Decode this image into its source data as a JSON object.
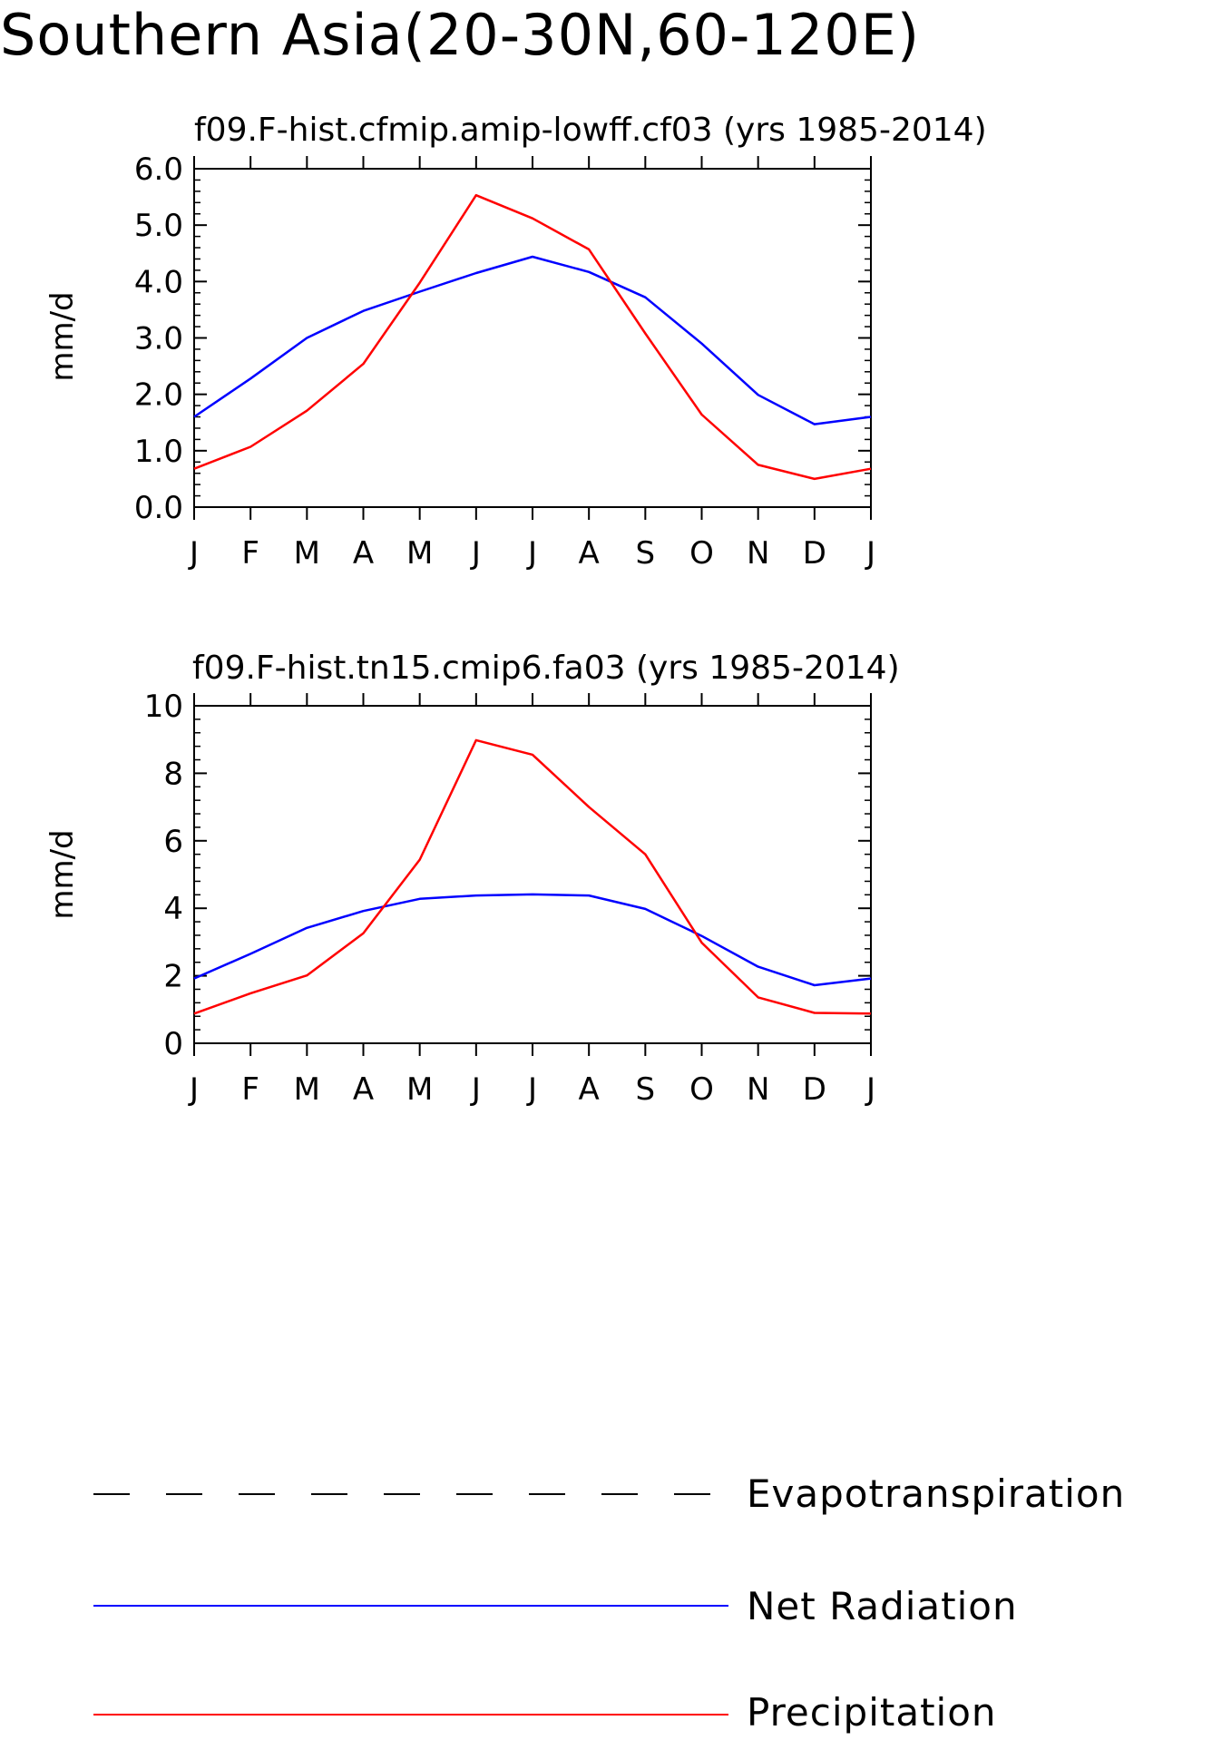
{
  "figure": {
    "title": "Southern Asia(20-30N,60-120E)"
  },
  "chart_data": [
    {
      "type": "line",
      "title": "f09.F-hist.cfmip.amip-lowff.cf03 (yrs 1985-2014)",
      "xlabel": "",
      "ylabel": "mm/d",
      "categories": [
        "J",
        "F",
        "M",
        "A",
        "M",
        "J",
        "J",
        "A",
        "S",
        "O",
        "N",
        "D",
        "J"
      ],
      "ylim": [
        0,
        6
      ],
      "yticks": [
        "0.0",
        "1.0",
        "2.0",
        "3.0",
        "4.0",
        "5.0",
        "6.0"
      ],
      "series": [
        {
          "name": "Net Radiation",
          "color": "#0000ff",
          "values": [
            1.6,
            2.28,
            3.0,
            3.48,
            3.82,
            4.15,
            4.44,
            4.17,
            3.72,
            2.9,
            1.99,
            1.47,
            1.6
          ]
        },
        {
          "name": "Precipitation",
          "color": "#ff0000",
          "values": [
            0.68,
            1.07,
            1.71,
            2.54,
            3.98,
            5.53,
            5.12,
            4.57,
            3.08,
            1.64,
            0.75,
            0.5,
            0.68
          ]
        }
      ]
    },
    {
      "type": "line",
      "title": "f09.F-hist.tn15.cmip6.fa03 (yrs 1985-2014)",
      "xlabel": "",
      "ylabel": "mm/d",
      "categories": [
        "J",
        "F",
        "M",
        "A",
        "M",
        "J",
        "J",
        "A",
        "S",
        "O",
        "N",
        "D",
        "J"
      ],
      "ylim": [
        0,
        10
      ],
      "yticks": [
        "0",
        "2",
        "4",
        "6",
        "8",
        "10"
      ],
      "series": [
        {
          "name": "Net Radiation",
          "color": "#0000ff",
          "values": [
            1.92,
            2.65,
            3.42,
            3.92,
            4.28,
            4.38,
            4.41,
            4.38,
            3.98,
            3.18,
            2.27,
            1.72,
            1.92
          ]
        },
        {
          "name": "Precipitation",
          "color": "#ff0000",
          "values": [
            0.88,
            1.48,
            2.01,
            3.26,
            5.44,
            8.98,
            8.55,
            7.0,
            5.6,
            2.98,
            1.36,
            0.9,
            0.88
          ]
        }
      ]
    }
  ],
  "legend": [
    {
      "label": "Evapotranspiration",
      "style": "dashed",
      "color": "#000000"
    },
    {
      "label": "Net Radiation",
      "style": "solid",
      "color": "#0000ff"
    },
    {
      "label": "Precipitation",
      "style": "solid",
      "color": "#ff0000"
    }
  ]
}
